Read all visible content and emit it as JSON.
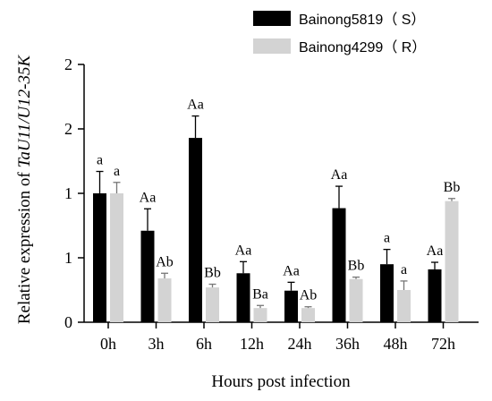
{
  "chart_data": {
    "type": "bar",
    "title": "",
    "xlabel": "Hours post infection",
    "ylabel_prefix": "Relative expression of ",
    "ylabel_gene": "TaU11/U12-35K",
    "categories": [
      "0h",
      "3h",
      "6h",
      "12h",
      "24h",
      "36h",
      "48h",
      "72h"
    ],
    "y_tick_labels": [
      "0",
      "1",
      "1",
      "2",
      "2"
    ],
    "ylim": [
      0,
      2
    ],
    "series": [
      {
        "name": "Bainong5819（ S）",
        "color": "#000000",
        "values": [
          1.0,
          0.71,
          1.43,
          0.38,
          0.245,
          0.885,
          0.45,
          0.41
        ],
        "errors": [
          0.17,
          0.17,
          0.17,
          0.09,
          0.065,
          0.17,
          0.115,
          0.055
        ],
        "sig_labels": [
          "a",
          "Aa",
          "Aa",
          "Aa",
          "Aa",
          "Aa",
          "a",
          "Aa"
        ]
      },
      {
        "name": "Bainong4299（ R）",
        "color": "#d3d3d3",
        "values": [
          1.0,
          0.34,
          0.27,
          0.11,
          0.11,
          0.335,
          0.25,
          0.94
        ],
        "errors": [
          0.085,
          0.04,
          0.025,
          0.02,
          0.01,
          0.015,
          0.07,
          0.02
        ],
        "sig_labels": [
          "a",
          "Ab",
          "Bb",
          "Ba",
          "Ab",
          "Bb",
          "a",
          "Bb"
        ]
      }
    ],
    "legend_position": "top-right",
    "grid": false
  }
}
